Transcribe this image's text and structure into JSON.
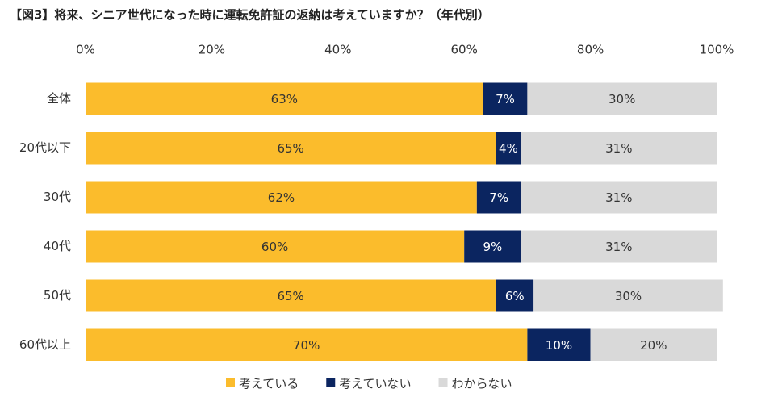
{
  "chart_data": {
    "type": "stacked_barh",
    "title": "【図3】将来、シニア世代になった時に運転免許証の返納は考えていますか？（年代別）",
    "categories": [
      "全体",
      "20代以下",
      "30代",
      "40代",
      "50代",
      "60代以上"
    ],
    "series": [
      {
        "name": "考えている",
        "color": "#fbbc2c",
        "text_color": "#333333",
        "values": [
          63,
          65,
          62,
          60,
          65,
          70
        ],
        "value_labels": [
          "63%",
          "65%",
          "62%",
          "60%",
          "65%",
          "70%"
        ]
      },
      {
        "name": "考えていない",
        "color": "#0b2560",
        "text_color": "#ffffff",
        "values": [
          7,
          4,
          7,
          9,
          6,
          10
        ],
        "value_labels": [
          "7%",
          "4%",
          "7%",
          "9%",
          "6%",
          "10%"
        ]
      },
      {
        "name": "わからない",
        "color": "#d9d9d9",
        "text_color": "#333333",
        "values": [
          30,
          31,
          31,
          31,
          30,
          20
        ],
        "value_labels": [
          "30%",
          "31%",
          "31%",
          "31%",
          "30%",
          "20%"
        ]
      }
    ],
    "xlim": [
      0,
      100
    ],
    "xticks": [
      {
        "value": 0,
        "label": "0%"
      },
      {
        "value": 20,
        "label": "20%"
      },
      {
        "value": 40,
        "label": "40%"
      },
      {
        "value": 60,
        "label": "60%"
      },
      {
        "value": 80,
        "label": "80%"
      },
      {
        "value": 100,
        "label": "100%"
      }
    ],
    "legend": "bottom"
  }
}
